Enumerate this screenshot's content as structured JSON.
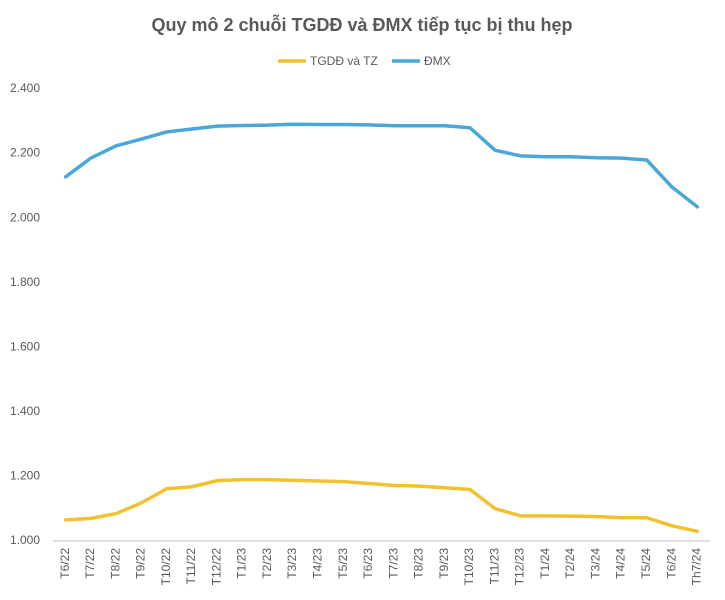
{
  "chart_data": {
    "type": "line",
    "title": "Quy mô 2 chuỗi TGDĐ và ĐMX tiếp tục bị thu hẹp",
    "categories": [
      "T6/22",
      "T7/22",
      "T8/22",
      "T9/22",
      "T10/22",
      "T11/22",
      "T12/22",
      "T1/23",
      "T2/23",
      "T3/23",
      "T4/23",
      "T5/23",
      "T6/23",
      "T7/23",
      "T8/23",
      "T9/23",
      "T10/23",
      "T11/23",
      "T12/23",
      "T1/24",
      "T2/24",
      "T3/24",
      "T4/24",
      "T5/24",
      "T6/24",
      "Th7/24"
    ],
    "series": [
      {
        "name": "TGDĐ và TZ",
        "color": "#f2c12e",
        "values": [
          1065,
          1070,
          1085,
          1118,
          1162,
          1168,
          1187,
          1190,
          1190,
          1188,
          1186,
          1184,
          1178,
          1172,
          1170,
          1165,
          1160,
          1100,
          1078,
          1078,
          1077,
          1076,
          1072,
          1072,
          1047,
          1030
        ]
      },
      {
        "name": "ĐMX",
        "color": "#4aa8d8",
        "values": [
          2128,
          2186,
          2224,
          2245,
          2267,
          2276,
          2285,
          2287,
          2288,
          2291,
          2290,
          2290,
          2289,
          2286,
          2286,
          2286,
          2280,
          2210,
          2193,
          2190,
          2190,
          2187,
          2186,
          2180,
          2096,
          2035
        ]
      }
    ],
    "ylim": [
      1000,
      2400
    ],
    "yticks": [
      {
        "value": 1000,
        "label": "1.000"
      },
      {
        "value": 1200,
        "label": "1.200"
      },
      {
        "value": 1400,
        "label": "1.400"
      },
      {
        "value": 1600,
        "label": "1.600"
      },
      {
        "value": 1800,
        "label": "1.800"
      },
      {
        "value": 2000,
        "label": "2.000"
      },
      {
        "value": 2200,
        "label": "2.200"
      },
      {
        "value": 2400,
        "label": "2.400"
      }
    ],
    "grid": false,
    "legend": "top"
  }
}
